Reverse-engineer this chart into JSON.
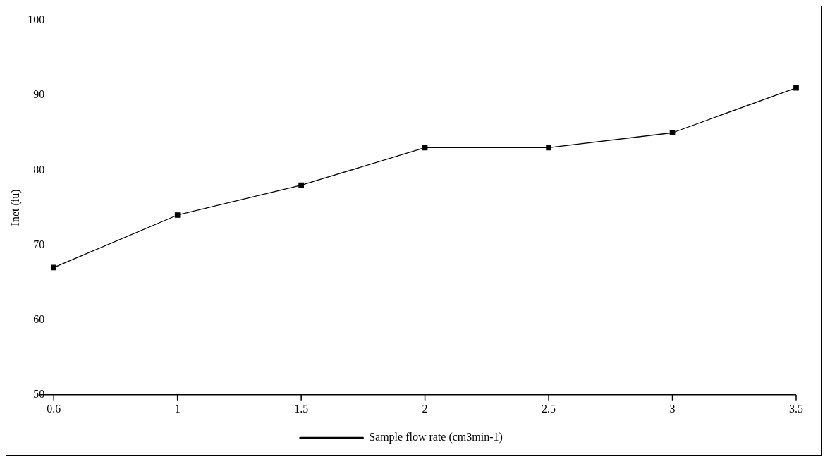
{
  "chart_data": {
    "type": "line",
    "xlabel": null,
    "ylabel": "Inet (iu)",
    "categories": [
      "0.6",
      "1",
      "1.5",
      "2",
      "2.5",
      "3",
      "3.5"
    ],
    "series": [
      {
        "name": "Sample flow rate (cm3min-1)",
        "color": "#000000",
        "values": [
          67,
          74,
          78,
          83,
          83,
          85,
          91
        ]
      }
    ],
    "ylim": [
      50,
      100
    ],
    "yticks": [
      50,
      60,
      70,
      80,
      90,
      100
    ],
    "grid": false,
    "legend": "bottom",
    "marker": "square",
    "line_style": "solid"
  }
}
